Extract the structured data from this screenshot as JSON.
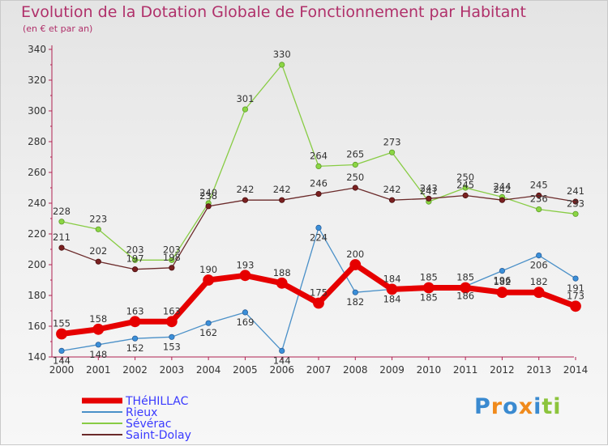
{
  "chart_data": {
    "type": "line",
    "title": "Evolution de la Dotation Globale de Fonctionnement par Habitant",
    "subtitle": "(en € et par an)",
    "xlabel": "",
    "ylabel": "",
    "ylim": [
      140,
      340
    ],
    "yticks": [
      140,
      160,
      180,
      200,
      220,
      240,
      260,
      280,
      300,
      320,
      340
    ],
    "categories": [
      "2000",
      "2001",
      "2002",
      "2003",
      "2004",
      "2005",
      "2006",
      "2007",
      "2008",
      "2009",
      "2010",
      "2011",
      "2012",
      "2013",
      "2014"
    ],
    "series": [
      {
        "name": "Rieux",
        "color": "#4a90c8",
        "values": [
          144,
          148,
          152,
          153,
          162,
          169,
          144,
          224,
          182,
          184,
          185,
          186,
          196,
          206,
          191
        ]
      },
      {
        "name": "Sévérac",
        "color": "#88cc44",
        "values": [
          228,
          223,
          203,
          203,
          240,
          301,
          330,
          264,
          265,
          273,
          241,
          250,
          244,
          236,
          233
        ]
      },
      {
        "name": "Saint-Dolay",
        "color": "#6b2a2a",
        "values": [
          211,
          202,
          197,
          198,
          238,
          242,
          242,
          246,
          250,
          242,
          243,
          245,
          242,
          245,
          241
        ]
      },
      {
        "name": "THéHILLAC",
        "color": "#e60000",
        "values": [
          155,
          158,
          163,
          163,
          190,
          193,
          188,
          175,
          200,
          184,
          185,
          185,
          182,
          182,
          173
        ]
      }
    ],
    "legend": [
      "THéHILLAC",
      "Rieux",
      "Sévérac",
      "Saint-Dolay"
    ],
    "legend_position": "bottom-left",
    "grid": false
  },
  "logo": {
    "letters": [
      "P",
      "r",
      "o",
      "x",
      "i",
      "t",
      "i"
    ],
    "colors": [
      "#3a8ad0",
      "#f08a1c",
      "#3a8ad0",
      "#f08a1c",
      "#3a8ad0",
      "#8cc43c",
      "#8cc43c"
    ]
  }
}
